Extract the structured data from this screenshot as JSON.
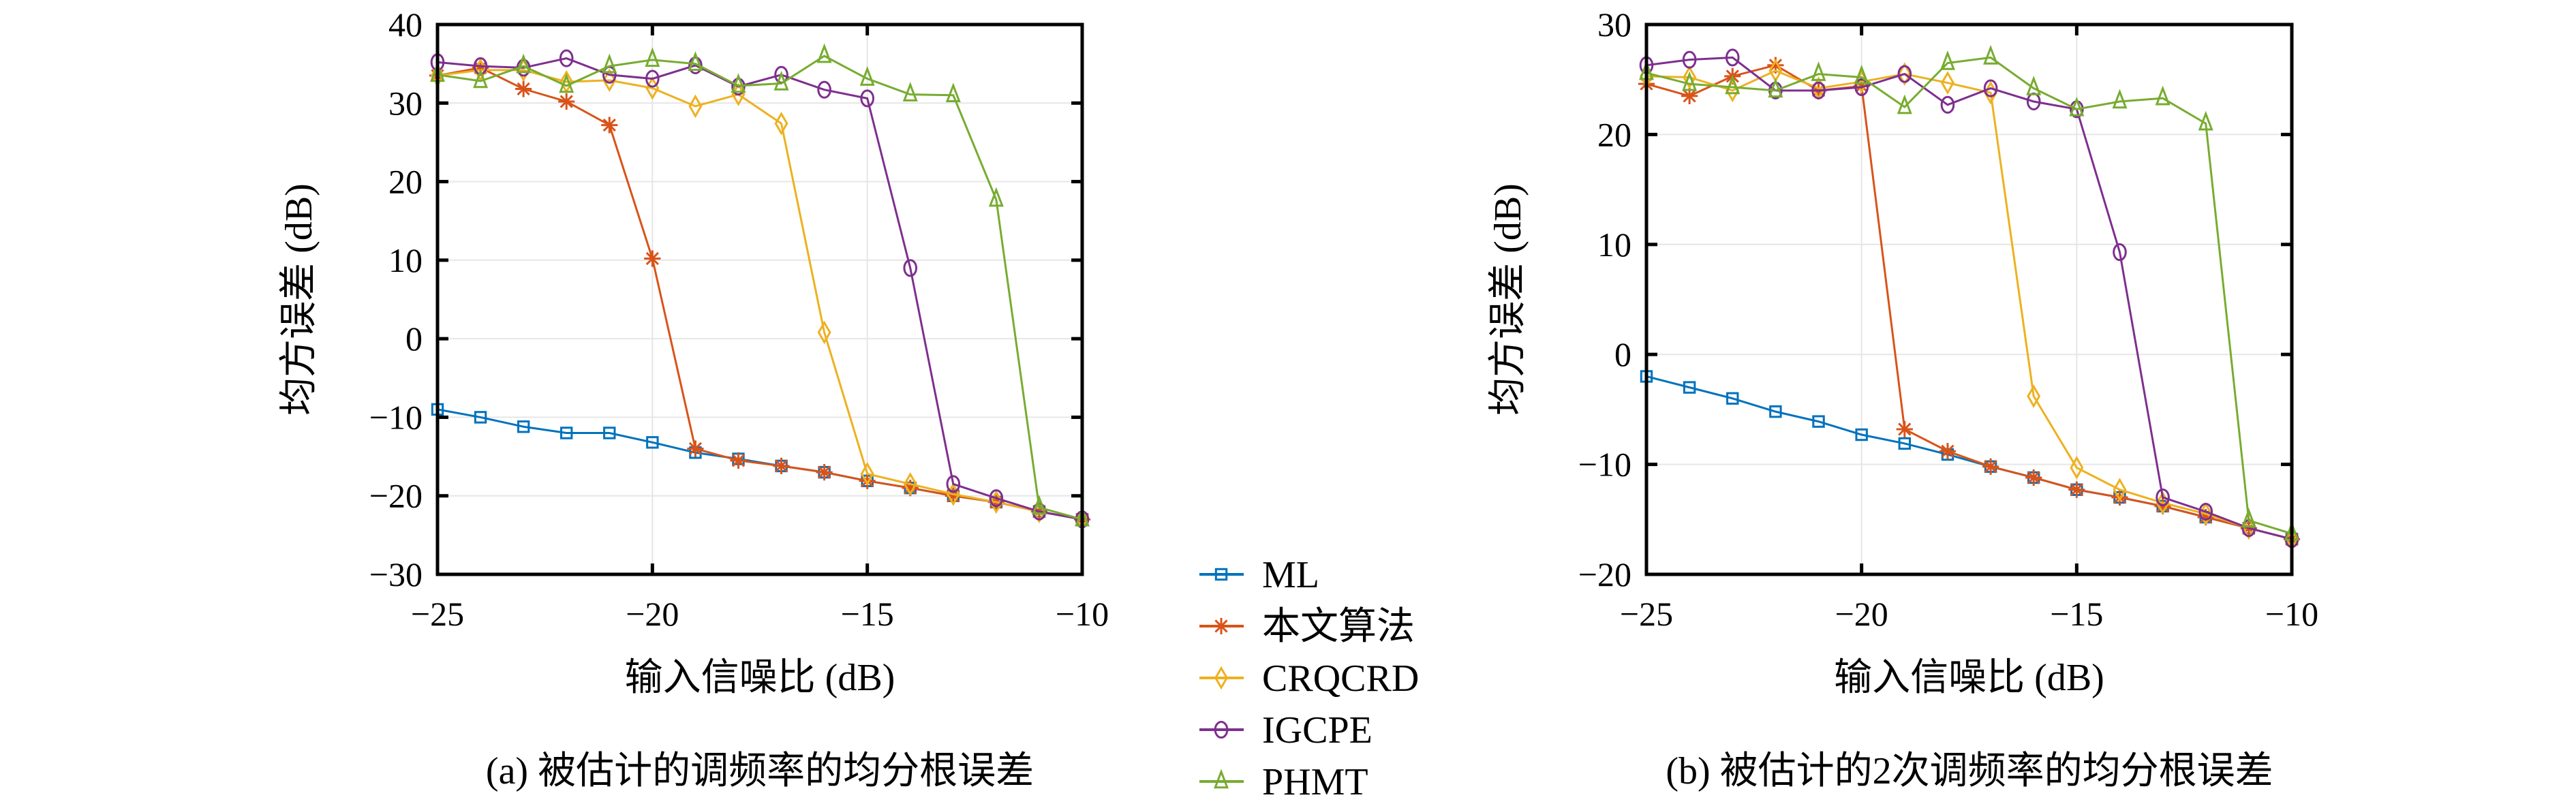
{
  "chart_data": [
    {
      "type": "line",
      "title": "",
      "caption": "(a) 被估计的调频率的均分根误差",
      "xlabel": "输入信噪比 (dB)",
      "ylabel": "均方误差 (dB)",
      "xlim": [
        -25,
        -10
      ],
      "ylim": [
        -30,
        40
      ],
      "xticks": [
        -25,
        -20,
        -15,
        -10
      ],
      "xtick_labels": [
        "−25",
        "−20",
        "−15",
        "−10"
      ],
      "yticks": [
        -30,
        -20,
        -10,
        0,
        10,
        20,
        30,
        40
      ],
      "ytick_labels": [
        "−30",
        "−20",
        "−10",
        "0",
        "10",
        "20",
        "30",
        "40"
      ],
      "grid": true,
      "x": [
        -25,
        -24,
        -23,
        -22,
        -21,
        -20,
        -19,
        -18,
        -17,
        -16,
        -15,
        -14,
        -13,
        -12,
        -11,
        -10
      ],
      "series": [
        {
          "name": "ML",
          "marker": "square",
          "values": [
            -9,
            -10,
            -11.2,
            -12,
            -12,
            -13.2,
            -14.5,
            -15.3,
            -16.2,
            -17,
            -18.1,
            -19,
            -20,
            -20.8,
            -22,
            -23
          ]
        },
        {
          "name": "本文算法",
          "marker": "asterisk",
          "values": [
            33.5,
            34.5,
            31.8,
            30.2,
            27.2,
            10.2,
            -14,
            -15.5,
            -16.2,
            -17,
            -18.1,
            -19,
            -20,
            -20.8,
            -22,
            -23
          ]
        },
        {
          "name": "CRQCRD",
          "marker": "diamond",
          "values": [
            33.5,
            34.2,
            34.2,
            32.7,
            32.9,
            31.9,
            29.6,
            31.1,
            27.4,
            0.8,
            -17.2,
            -18.5,
            -19.8,
            -20.8,
            -22,
            -23
          ]
        },
        {
          "name": "IGCPE",
          "marker": "circle",
          "values": [
            35.2,
            34.7,
            34.5,
            35.7,
            33.6,
            33.1,
            34.8,
            32.1,
            33.6,
            31.7,
            30.6,
            9,
            -18.5,
            -20.3,
            -22,
            -23
          ]
        },
        {
          "name": "PHMT",
          "marker": "triangle",
          "values": [
            33.6,
            32.8,
            34.7,
            32.2,
            34.7,
            35.5,
            35.0,
            32.2,
            32.5,
            36.0,
            33.1,
            31.1,
            31.0,
            17.7,
            -21.5,
            -23
          ]
        }
      ]
    },
    {
      "type": "line",
      "title": "",
      "caption": "(b) 被估计的2次调频率的均分根误差",
      "xlabel": "输入信噪比 (dB)",
      "ylabel": "均方误差 (dB)",
      "xlim": [
        -25,
        -10
      ],
      "ylim": [
        -20,
        30
      ],
      "xticks": [
        -25,
        -20,
        -15,
        -10
      ],
      "xtick_labels": [
        "−25",
        "−20",
        "−15",
        "−10"
      ],
      "yticks": [
        -20,
        -10,
        0,
        10,
        20,
        30
      ],
      "ytick_labels": [
        "−20",
        "−10",
        "0",
        "10",
        "20",
        "30"
      ],
      "grid": true,
      "x": [
        -25,
        -24,
        -23,
        -22,
        -21,
        -20,
        -19,
        -18,
        -17,
        -16,
        -15,
        -14,
        -13,
        -12,
        -11,
        -10
      ],
      "series": [
        {
          "name": "ML",
          "marker": "square",
          "values": [
            -2,
            -3,
            -4,
            -5.2,
            -6.1,
            -7.3,
            -8.1,
            -9.1,
            -10.2,
            -11.2,
            -12.3,
            -13,
            -13.8,
            -14.8,
            -15.8,
            -16.8
          ]
        },
        {
          "name": "本文算法",
          "marker": "asterisk",
          "values": [
            24.6,
            23.5,
            25.3,
            26.3,
            24,
            24.4,
            -6.8,
            -8.8,
            -10.2,
            -11.2,
            -12.3,
            -13,
            -13.8,
            -14.8,
            -15.8,
            -16.8
          ]
        },
        {
          "name": "CRQCRD",
          "marker": "diamond",
          "values": [
            25.3,
            25.2,
            24,
            25.8,
            24.2,
            24.8,
            25.5,
            24.7,
            23.8,
            -3.8,
            -10.3,
            -12.3,
            -13.5,
            -14.5,
            -15.8,
            -16.8
          ]
        },
        {
          "name": "IGCPE",
          "marker": "circle",
          "values": [
            26.3,
            26.8,
            27.0,
            24,
            24,
            24.3,
            25.5,
            22.7,
            24.2,
            23,
            22.3,
            9.3,
            -13,
            -14.3,
            -15.8,
            -16.8
          ]
        },
        {
          "name": "PHMT",
          "marker": "triangle",
          "values": [
            25.6,
            24.6,
            24.3,
            24.0,
            25.5,
            25.2,
            22.5,
            26.5,
            27.0,
            24.2,
            22.3,
            23,
            23.3,
            21,
            -15.1,
            -16.3
          ]
        }
      ]
    }
  ],
  "legend": {
    "items": [
      {
        "label": "ML",
        "color": "#0072BD",
        "marker": "square"
      },
      {
        "label": "本文算法",
        "color": "#D95319",
        "marker": "asterisk"
      },
      {
        "label": "CRQCRD",
        "color": "#EDB120",
        "marker": "diamond"
      },
      {
        "label": "IGCPE",
        "color": "#7E2F8E",
        "marker": "circle"
      },
      {
        "label": "PHMT",
        "color": "#77AC30",
        "marker": "triangle"
      }
    ]
  }
}
